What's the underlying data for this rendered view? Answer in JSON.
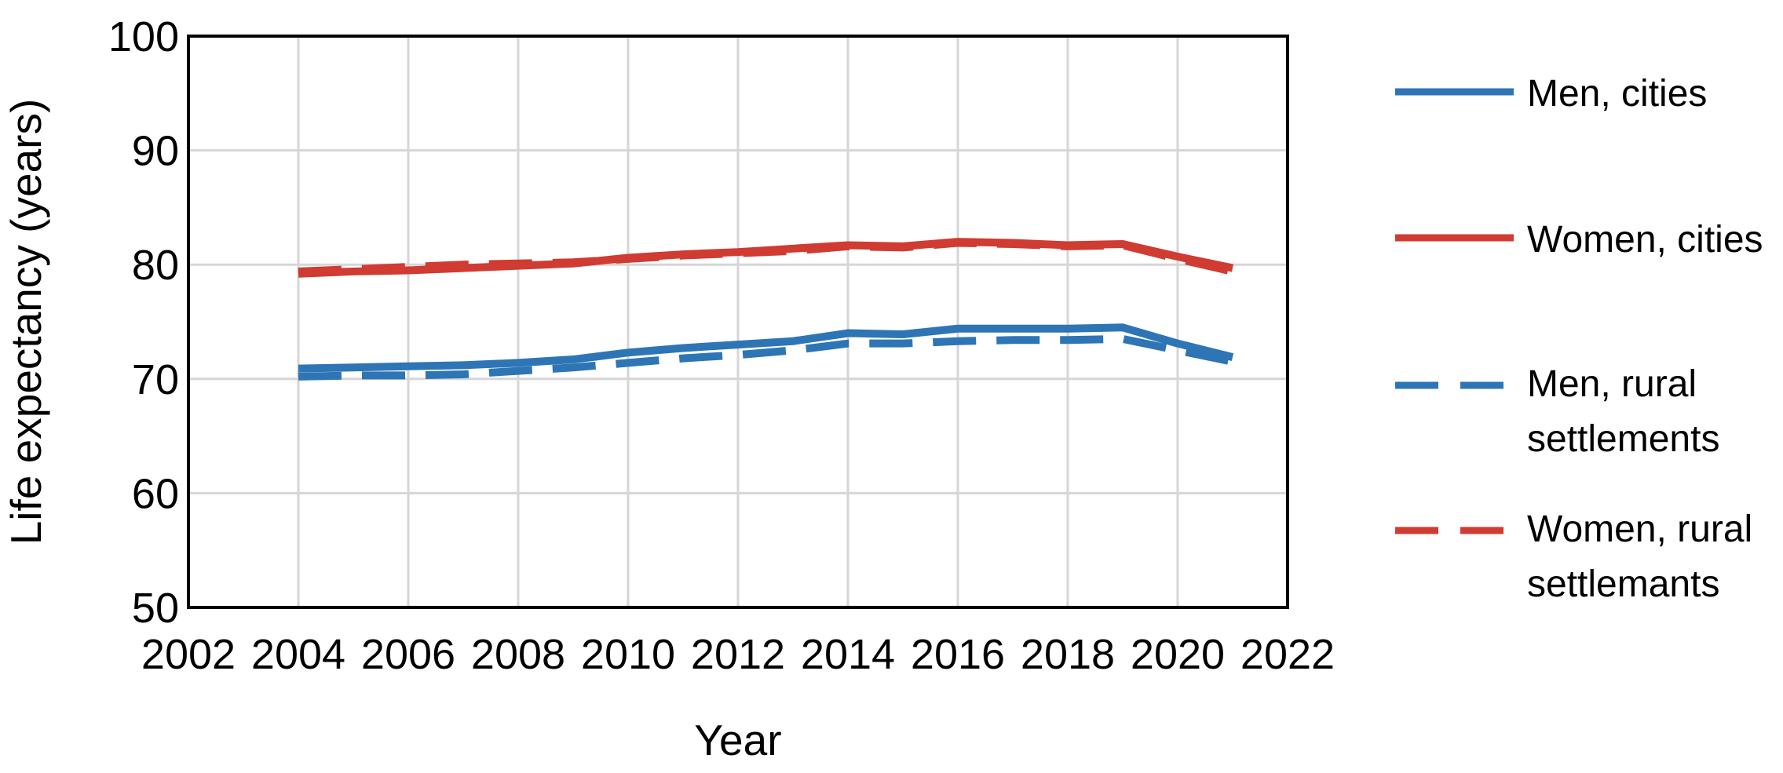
{
  "chart_data": {
    "type": "line",
    "title": "",
    "xlabel": "Year",
    "ylabel": "Life expectancy (years)",
    "xlim": [
      2002,
      2022
    ],
    "ylim": [
      50,
      100
    ],
    "x_ticks": [
      2002,
      2004,
      2006,
      2008,
      2010,
      2012,
      2014,
      2016,
      2018,
      2020,
      2022
    ],
    "y_ticks": [
      50,
      60,
      70,
      80,
      90,
      100
    ],
    "grid": true,
    "legend_position": "right",
    "x": [
      2004,
      2005,
      2006,
      2007,
      2008,
      2009,
      2010,
      2011,
      2012,
      2013,
      2014,
      2015,
      2016,
      2017,
      2018,
      2019,
      2020,
      2021
    ],
    "series": [
      {
        "name": "Men, cities",
        "color": "#2E75B6",
        "style": "solid",
        "values": [
          70.9,
          71.0,
          71.1,
          71.2,
          71.4,
          71.7,
          72.3,
          72.7,
          73.0,
          73.3,
          74.0,
          73.9,
          74.4,
          74.4,
          74.4,
          74.5,
          73.1,
          71.9
        ]
      },
      {
        "name": "Women, cities",
        "color": "#D03B32",
        "style": "solid",
        "values": [
          79.2,
          79.4,
          79.5,
          79.7,
          79.9,
          80.1,
          80.6,
          80.9,
          81.1,
          81.4,
          81.7,
          81.6,
          82.0,
          81.9,
          81.7,
          81.8,
          80.7,
          79.7
        ]
      },
      {
        "name": "Men, rural settlements",
        "color": "#2E75B6",
        "style": "dashed",
        "values": [
          70.2,
          70.3,
          70.3,
          70.4,
          70.7,
          71.0,
          71.4,
          71.8,
          72.1,
          72.5,
          73.1,
          73.1,
          73.3,
          73.4,
          73.4,
          73.5,
          72.5,
          71.5
        ]
      },
      {
        "name": "Women, rural settlemants",
        "color": "#D03B32",
        "style": "dashed",
        "values": [
          79.4,
          79.6,
          79.8,
          80.0,
          80.1,
          80.2,
          80.5,
          80.8,
          81.0,
          81.2,
          81.6,
          81.5,
          81.9,
          81.8,
          81.6,
          81.7,
          80.5,
          79.4
        ]
      }
    ]
  },
  "legend": {
    "items": [
      {
        "lines": [
          "Men, cities"
        ],
        "color": "#2E75B6",
        "style": "solid"
      },
      {
        "lines": [
          "Women, cities"
        ],
        "color": "#D03B32",
        "style": "solid"
      },
      {
        "lines": [
          "Men, rural",
          "settlements"
        ],
        "color": "#2E75B6",
        "style": "dashed"
      },
      {
        "lines": [
          "Women, rural",
          "settlemants"
        ],
        "color": "#D03B32",
        "style": "dashed"
      }
    ]
  },
  "colors": {
    "blue": "#2E75B6",
    "red": "#D03B32",
    "grid": "#D6D6D6",
    "axis": "#000000",
    "text": "#000000"
  }
}
